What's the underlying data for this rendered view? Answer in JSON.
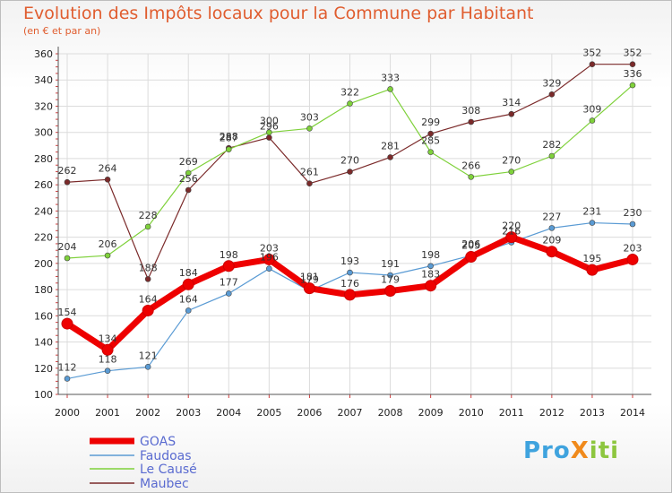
{
  "chart_data": {
    "type": "line",
    "title": "Evolution des Impôts locaux pour la Commune par Habitant",
    "subtitle": "(en € et par an)",
    "x": [
      "2000",
      "2001",
      "2002",
      "2003",
      "2004",
      "2005",
      "2006",
      "2007",
      "2008",
      "2009",
      "2010",
      "2011",
      "2012",
      "2013",
      "2014"
    ],
    "ylim": [
      100,
      360
    ],
    "yticks": [
      100,
      120,
      140,
      160,
      180,
      200,
      220,
      240,
      260,
      280,
      300,
      320,
      340,
      360
    ],
    "grid": true,
    "legend_position": "bottom-left",
    "series": [
      {
        "name": "GOAS",
        "color": "#ee0000",
        "values": [
          154,
          134,
          164,
          184,
          198,
          203,
          181,
          176,
          179,
          183,
          205,
          220,
          209,
          195,
          203
        ]
      },
      {
        "name": "Faudoas",
        "color": "#5a9bd4",
        "values": [
          112,
          118,
          121,
          164,
          177,
          196,
          179,
          193,
          191,
          198,
          206,
          216,
          227,
          231,
          230
        ]
      },
      {
        "name": "Le Causé",
        "color": "#7fd13b",
        "values": [
          204,
          206,
          228,
          269,
          287,
          300,
          303,
          322,
          333,
          285,
          266,
          270,
          282,
          309,
          336
        ]
      },
      {
        "name": "Maubec",
        "color": "#7b2a2a",
        "values": [
          262,
          264,
          188,
          256,
          288,
          296,
          261,
          270,
          281,
          299,
          308,
          314,
          329,
          352,
          352
        ]
      }
    ]
  },
  "logo": {
    "text": "ProXiti",
    "parts": [
      "Pro",
      "X",
      "iti"
    ],
    "colors": [
      "#3fa3de",
      "#f08a1c",
      "#8dc63f"
    ]
  }
}
